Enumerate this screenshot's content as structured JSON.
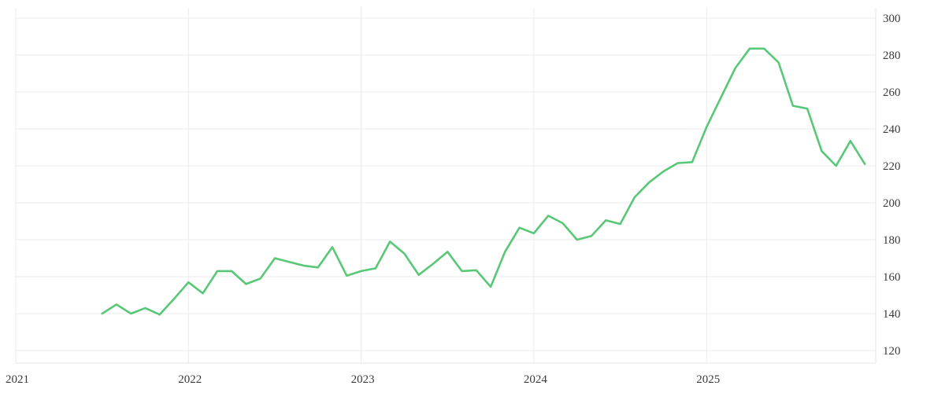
{
  "chart_data": {
    "type": "line",
    "title": "",
    "subtitle": "",
    "xlabel": "",
    "ylabel": "",
    "legend": "none",
    "grid": true,
    "y_axis_side": "right",
    "background_color": "#ffffff",
    "line_color": "#58c877",
    "grid_color": "#ebebeb",
    "border_color": "#e4e4e4",
    "label_color": "#3b3b3b",
    "x_tick_labels": [
      "2021",
      "2022",
      "2023",
      "2024",
      "2025"
    ],
    "y_tick_labels": [
      "120",
      "140",
      "160",
      "180",
      "200",
      "220",
      "240",
      "260",
      "280",
      "300"
    ],
    "y_ticks": [
      120,
      140,
      160,
      180,
      200,
      220,
      240,
      260,
      280,
      300
    ],
    "x_tick_years": [
      2021,
      2022,
      2023,
      2024,
      2025
    ],
    "ylim": [
      113,
      305.5
    ],
    "xlim_years": [
      2021,
      2025.98
    ],
    "frequency": "monthly",
    "series": [
      {
        "name": "value",
        "points": [
          {
            "date": "2021-07",
            "value": 140
          },
          {
            "date": "2021-08",
            "value": 145
          },
          {
            "date": "2021-09",
            "value": 140
          },
          {
            "date": "2021-10",
            "value": 143
          },
          {
            "date": "2021-11",
            "value": 139.5
          },
          {
            "date": "2021-12",
            "value": 148
          },
          {
            "date": "2022-01",
            "value": 157
          },
          {
            "date": "2022-02",
            "value": 151
          },
          {
            "date": "2022-03",
            "value": 163
          },
          {
            "date": "2022-04",
            "value": 163
          },
          {
            "date": "2022-05",
            "value": 156
          },
          {
            "date": "2022-06",
            "value": 159
          },
          {
            "date": "2022-07",
            "value": 170
          },
          {
            "date": "2022-08",
            "value": 168
          },
          {
            "date": "2022-09",
            "value": 166
          },
          {
            "date": "2022-10",
            "value": 165
          },
          {
            "date": "2022-11",
            "value": 176
          },
          {
            "date": "2022-12",
            "value": 160.5
          },
          {
            "date": "2023-01",
            "value": 163
          },
          {
            "date": "2023-02",
            "value": 164.5
          },
          {
            "date": "2023-03",
            "value": 179
          },
          {
            "date": "2023-04",
            "value": 172.5
          },
          {
            "date": "2023-05",
            "value": 161
          },
          {
            "date": "2023-06",
            "value": 167
          },
          {
            "date": "2023-07",
            "value": 173.5
          },
          {
            "date": "2023-08",
            "value": 163
          },
          {
            "date": "2023-09",
            "value": 163.5
          },
          {
            "date": "2023-10",
            "value": 154.5
          },
          {
            "date": "2023-11",
            "value": 173.5
          },
          {
            "date": "2023-12",
            "value": 186.5
          },
          {
            "date": "2024-01",
            "value": 183.5
          },
          {
            "date": "2024-02",
            "value": 193
          },
          {
            "date": "2024-03",
            "value": 189
          },
          {
            "date": "2024-04",
            "value": 180
          },
          {
            "date": "2024-05",
            "value": 182
          },
          {
            "date": "2024-06",
            "value": 190.5
          },
          {
            "date": "2024-07",
            "value": 188.5
          },
          {
            "date": "2024-08",
            "value": 203
          },
          {
            "date": "2024-09",
            "value": 211
          },
          {
            "date": "2024-10",
            "value": 217
          },
          {
            "date": "2024-11",
            "value": 221.5
          },
          {
            "date": "2024-12",
            "value": 222
          },
          {
            "date": "2025-01",
            "value": 241
          },
          {
            "date": "2025-02",
            "value": 257
          },
          {
            "date": "2025-03",
            "value": 273
          },
          {
            "date": "2025-04",
            "value": 283.5
          },
          {
            "date": "2025-05",
            "value": 283.5
          },
          {
            "date": "2025-06",
            "value": 276
          },
          {
            "date": "2025-07",
            "value": 252.5
          },
          {
            "date": "2025-08",
            "value": 251
          },
          {
            "date": "2025-09",
            "value": 228
          },
          {
            "date": "2025-10",
            "value": 220
          },
          {
            "date": "2025-11",
            "value": 233.5
          },
          {
            "date": "2025-12",
            "value": 221
          }
        ]
      }
    ]
  }
}
